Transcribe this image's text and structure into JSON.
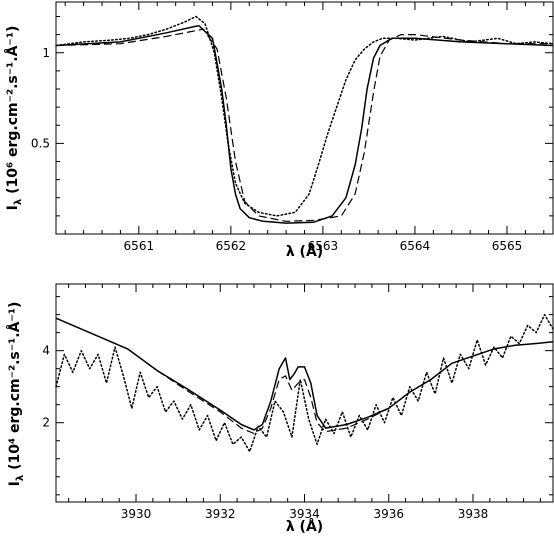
{
  "chart_data": [
    {
      "type": "line",
      "xlabel": "λ (Å)",
      "ylabel": "Iλ (10⁶ erg.cm⁻².s⁻¹.Å⁻¹)",
      "ylabel_parts": {
        "sym": "I",
        "sub": "λ",
        "unit": " (10⁶ erg.cm⁻².s⁻¹.Å⁻¹)"
      },
      "xlim": [
        6560.1,
        6565.5
      ],
      "ylim": [
        0.0,
        1.28
      ],
      "xticks_major": [
        6561,
        6562,
        6563,
        6564,
        6565
      ],
      "xticks_minor_step": 0.2,
      "yticks_major": [
        0.5,
        1.0
      ],
      "yticks_labels": [
        "0.5",
        "1"
      ],
      "yticks_minor_step": 0.1,
      "series": [
        {
          "style": "solid",
          "x": [
            6560.1,
            6560.8,
            6561.3,
            6561.65,
            6561.8,
            6561.9,
            6561.95,
            6562.0,
            6562.05,
            6562.1,
            6562.2,
            6562.35,
            6562.6,
            6562.9,
            6563.1,
            6563.25,
            6563.35,
            6563.42,
            6563.48,
            6563.55,
            6563.62,
            6563.75,
            6564.0,
            6564.5,
            6565.0,
            6565.5
          ],
          "y": [
            1.04,
            1.06,
            1.11,
            1.15,
            1.08,
            0.8,
            0.6,
            0.36,
            0.22,
            0.14,
            0.09,
            0.07,
            0.06,
            0.065,
            0.1,
            0.2,
            0.38,
            0.58,
            0.8,
            0.97,
            1.04,
            1.08,
            1.08,
            1.06,
            1.05,
            1.04
          ]
        },
        {
          "style": "dashed",
          "x": [
            6560.1,
            6560.8,
            6561.3,
            6561.7,
            6561.85,
            6561.95,
            6562.05,
            6562.15,
            6562.3,
            6562.6,
            6562.9,
            6563.2,
            6563.35,
            6563.45,
            6563.55,
            6563.62,
            6563.72,
            6563.85,
            6564.0,
            6564.5,
            6565.0,
            6565.5
          ],
          "y": [
            1.04,
            1.05,
            1.09,
            1.13,
            1.02,
            0.75,
            0.4,
            0.18,
            0.1,
            0.07,
            0.075,
            0.1,
            0.22,
            0.45,
            0.78,
            0.98,
            1.07,
            1.1,
            1.1,
            1.07,
            1.05,
            1.05
          ]
        },
        {
          "style": "dotted",
          "x": [
            6560.1,
            6560.4,
            6560.7,
            6560.9,
            6561.1,
            6561.3,
            6561.5,
            6561.62,
            6561.72,
            6561.82,
            6561.9,
            6561.97,
            6562.05,
            6562.15,
            6562.3,
            6562.5,
            6562.7,
            6562.85,
            6562.95,
            6563.05,
            6563.15,
            6563.25,
            6563.35,
            6563.45,
            6563.55,
            6563.65,
            6563.8,
            6564.0,
            6564.3,
            6564.6,
            6564.9,
            6565.1,
            6565.3,
            6565.5
          ],
          "y": [
            1.04,
            1.06,
            1.07,
            1.08,
            1.1,
            1.13,
            1.17,
            1.2,
            1.16,
            1.0,
            0.75,
            0.5,
            0.28,
            0.17,
            0.12,
            0.1,
            0.12,
            0.22,
            0.38,
            0.55,
            0.7,
            0.85,
            0.96,
            1.02,
            1.06,
            1.08,
            1.08,
            1.07,
            1.09,
            1.06,
            1.08,
            1.05,
            1.06,
            1.05
          ]
        }
      ]
    },
    {
      "type": "line",
      "xlabel": "λ (Å)",
      "ylabel": "Iλ (10⁴ erg.cm⁻².s⁻¹.Å⁻¹)",
      "ylabel_parts": {
        "sym": "I",
        "sub": "λ",
        "unit": " (10⁴ erg.cm⁻².s⁻¹.Å⁻¹)"
      },
      "xlim": [
        3928.1,
        3939.9
      ],
      "ylim": [
        -0.2,
        5.85
      ],
      "xticks_major": [
        3930,
        3932,
        3934,
        3936,
        3938
      ],
      "xticks_minor_step": 0.4,
      "yticks_major": [
        2,
        4
      ],
      "yticks_labels": [
        "2",
        "4"
      ],
      "yticks_minor_step": 0.5,
      "series": [
        {
          "style": "solid",
          "x": [
            3928.1,
            3929.0,
            3929.8,
            3930.5,
            3931.2,
            3932.0,
            3932.5,
            3932.8,
            3933.0,
            3933.2,
            3933.4,
            3933.55,
            3933.65,
            3933.75,
            3933.85,
            3934.0,
            3934.15,
            3934.3,
            3934.5,
            3935.0,
            3935.5,
            3936.0,
            3936.5,
            3937.0,
            3937.5,
            3938.0,
            3938.5,
            3939.0,
            3939.5,
            3939.9
          ],
          "y": [
            4.9,
            4.45,
            4.05,
            3.45,
            2.95,
            2.35,
            1.95,
            1.8,
            1.95,
            2.6,
            3.5,
            3.8,
            3.2,
            3.35,
            3.55,
            3.55,
            3.1,
            2.2,
            1.85,
            1.95,
            2.15,
            2.4,
            2.85,
            3.2,
            3.65,
            3.85,
            4.05,
            4.15,
            4.2,
            4.25
          ]
        },
        {
          "style": "dashed",
          "x": [
            3930.5,
            3931.2,
            3932.0,
            3932.5,
            3932.8,
            3933.0,
            3933.2,
            3933.4,
            3933.55,
            3933.7,
            3933.85,
            3934.0,
            3934.15,
            3934.3,
            3934.5,
            3935.0,
            3935.5,
            3936.0
          ],
          "y": [
            3.45,
            2.9,
            2.3,
            1.85,
            1.7,
            1.85,
            2.4,
            3.2,
            3.3,
            2.9,
            3.1,
            3.2,
            2.7,
            2.0,
            1.75,
            1.85,
            2.1,
            2.4
          ]
        },
        {
          "style": "dotted",
          "x": [
            3928.1,
            3928.3,
            3928.5,
            3928.7,
            3928.9,
            3929.1,
            3929.3,
            3929.5,
            3929.7,
            3929.9,
            3930.1,
            3930.3,
            3930.5,
            3930.7,
            3930.9,
            3931.1,
            3931.3,
            3931.5,
            3931.7,
            3931.9,
            3932.1,
            3932.3,
            3932.5,
            3932.7,
            3932.9,
            3933.1,
            3933.3,
            3933.5,
            3933.7,
            3933.9,
            3934.1,
            3934.3,
            3934.5,
            3934.7,
            3934.9,
            3935.1,
            3935.3,
            3935.5,
            3935.7,
            3935.9,
            3936.1,
            3936.3,
            3936.5,
            3936.7,
            3936.9,
            3937.1,
            3937.3,
            3937.5,
            3937.7,
            3937.9,
            3938.1,
            3938.3,
            3938.5,
            3938.7,
            3938.9,
            3939.1,
            3939.3,
            3939.5,
            3939.7,
            3939.9
          ],
          "y": [
            3.0,
            3.9,
            3.4,
            4.0,
            3.5,
            3.9,
            3.1,
            4.1,
            3.3,
            2.4,
            3.4,
            2.7,
            3.0,
            2.3,
            2.6,
            2.1,
            2.5,
            1.8,
            2.2,
            1.5,
            2.0,
            1.4,
            1.6,
            1.2,
            1.9,
            1.6,
            2.6,
            2.3,
            1.6,
            3.2,
            2.1,
            1.4,
            2.1,
            1.7,
            2.3,
            1.6,
            2.2,
            1.8,
            2.5,
            2.0,
            2.7,
            2.2,
            3.0,
            2.6,
            3.4,
            2.8,
            3.8,
            3.1,
            3.9,
            3.5,
            4.3,
            3.6,
            4.1,
            3.8,
            4.4,
            4.2,
            4.7,
            4.5,
            5.0,
            4.6
          ]
        }
      ]
    }
  ]
}
